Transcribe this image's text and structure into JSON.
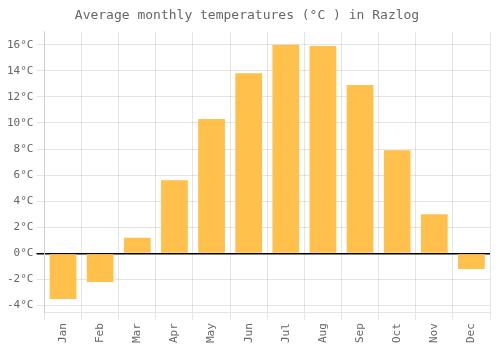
{
  "chart_data": {
    "type": "bar",
    "title": "Average monthly temperatures (°C ) in Razlog",
    "categories": [
      "Jan",
      "Feb",
      "Mar",
      "Apr",
      "May",
      "Jun",
      "Jul",
      "Aug",
      "Sep",
      "Oct",
      "Nov",
      "Dec"
    ],
    "values": [
      -3.5,
      -2.2,
      1.2,
      5.6,
      10.3,
      13.8,
      16.0,
      15.9,
      12.9,
      7.9,
      3.0,
      -1.2
    ],
    "color": "#FFC04C",
    "ylim": [
      -4.5,
      17.0
    ],
    "yticks": [
      {
        "value": -4,
        "label": "-4°C"
      },
      {
        "value": -2,
        "label": "-2°C"
      },
      {
        "value": 0,
        "label": "0°C"
      },
      {
        "value": 2,
        "label": "2°C"
      },
      {
        "value": 4,
        "label": "4°C"
      },
      {
        "value": 6,
        "label": "6°C"
      },
      {
        "value": 8,
        "label": "8°C"
      },
      {
        "value": 10,
        "label": "10°C"
      },
      {
        "value": 12,
        "label": "12°C"
      },
      {
        "value": 14,
        "label": "14°C"
      },
      {
        "value": 16,
        "label": "16°C"
      }
    ],
    "grid": true
  }
}
